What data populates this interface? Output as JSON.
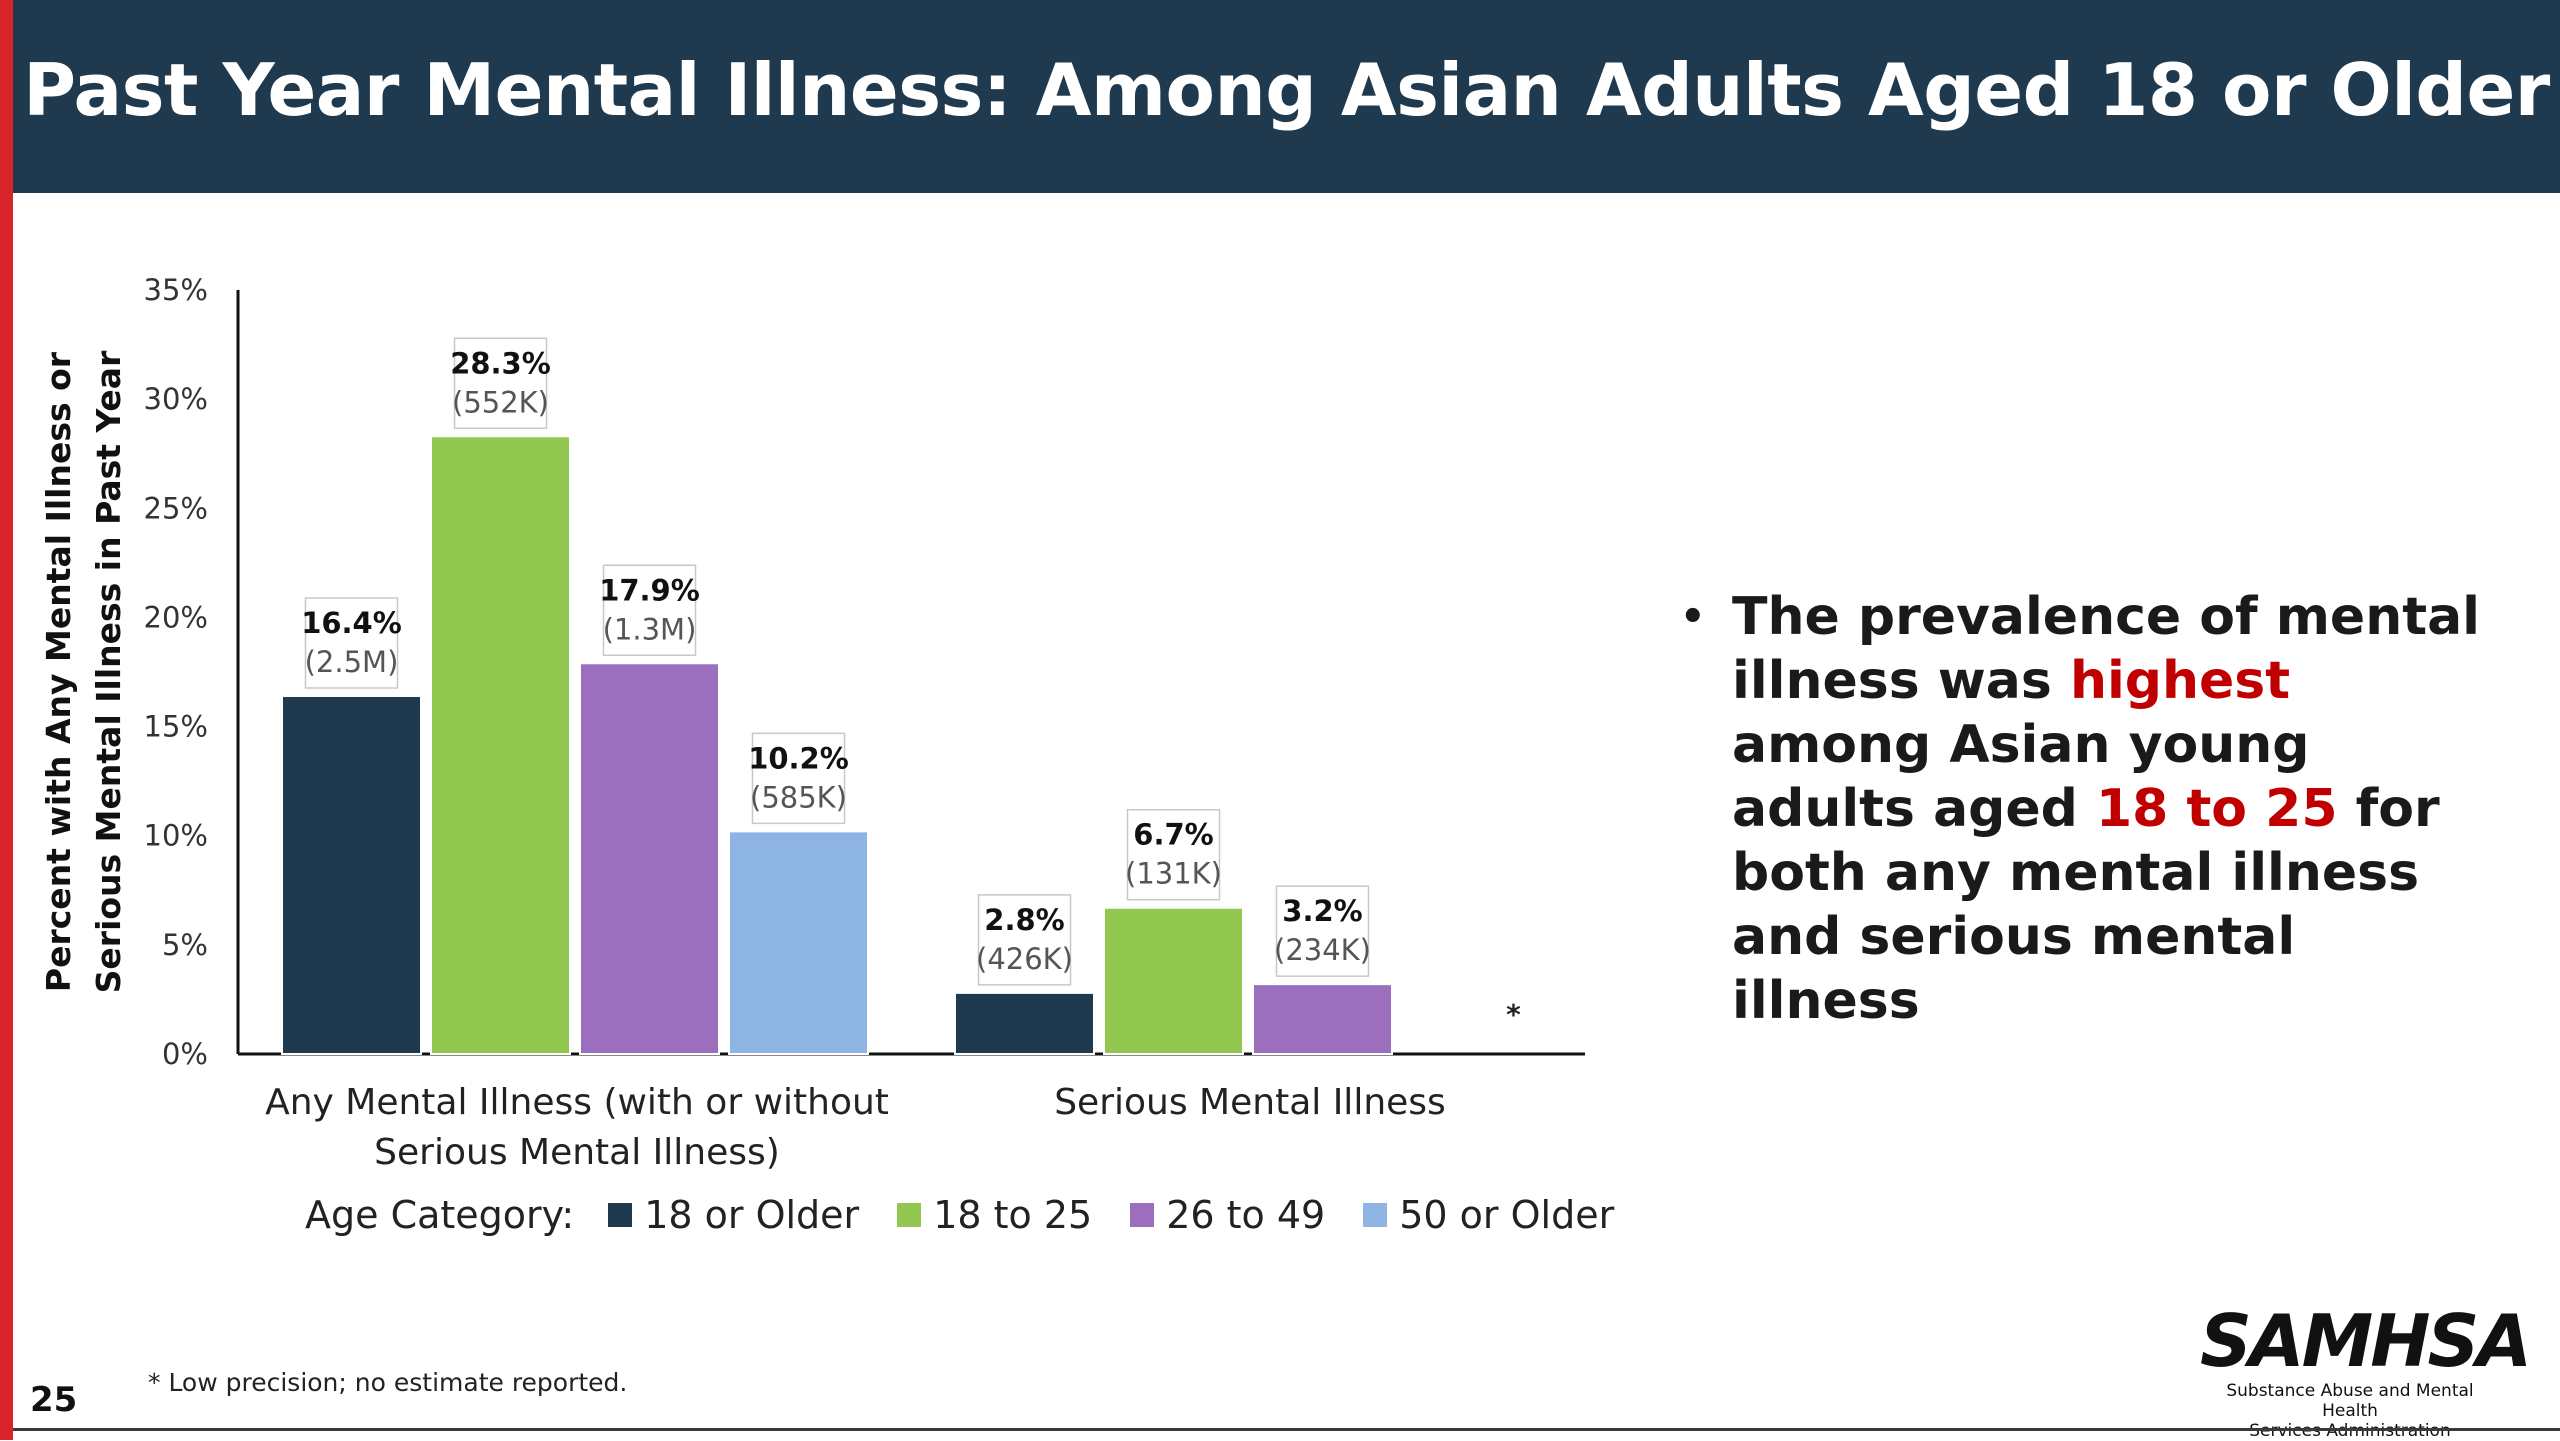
{
  "header": {
    "title": "Past Year Mental Illness: Among Asian Adults Aged 18 or Older"
  },
  "colors": {
    "header_bg": "#1f3a4f",
    "accent_red": "#d8232a",
    "highlight": "#c00000"
  },
  "chart_data": {
    "type": "bar",
    "ylabel": "Percent with Any Mental Illness or Serious Mental Illness in Past Year",
    "ylim": [
      0,
      35
    ],
    "yticks": [
      "0%",
      "5%",
      "10%",
      "15%",
      "20%",
      "25%",
      "30%",
      "35%"
    ],
    "categories": [
      "Any Mental Illness (with or without Serious Mental Illness)",
      "Serious Mental Illness"
    ],
    "category_lines": [
      [
        "Any Mental Illness (with or without",
        "Serious Mental Illness)"
      ],
      [
        "Serious Mental Illness"
      ]
    ],
    "legend_title": "Age Category:",
    "series": [
      {
        "name": "18 or Older",
        "color": "#1f3a4f",
        "values": [
          16.4,
          2.8
        ],
        "labels": [
          "16.4%",
          "2.8%"
        ],
        "counts": [
          "(2.5M)",
          "(426K)"
        ]
      },
      {
        "name": "18 to 25",
        "color": "#92c84f",
        "values": [
          28.3,
          6.7
        ],
        "labels": [
          "28.3%",
          "6.7%"
        ],
        "counts": [
          "(552K)",
          "(131K)"
        ]
      },
      {
        "name": "26 to 49",
        "color": "#9b6fbe",
        "values": [
          17.9,
          3.2
        ],
        "labels": [
          "17.9%",
          "3.2%"
        ],
        "counts": [
          "(1.3M)",
          "(234K)"
        ]
      },
      {
        "name": "50 or Older",
        "color": "#8db4e2",
        "values": [
          10.2,
          null
        ],
        "labels": [
          "10.2%",
          "*"
        ],
        "counts": [
          "(585K)",
          ""
        ]
      }
    ],
    "grid": false,
    "legend": "bottom"
  },
  "bullet": {
    "part1": "The prevalence of mental illness was ",
    "hl1": "highest",
    "part2": " among Asian young adults aged ",
    "hl2": "18 to 25",
    "part3": " for both any mental illness and serious mental illness"
  },
  "footnote": "* Low precision; no estimate reported.",
  "page_number": "25",
  "logo": {
    "word": "SAMHSA",
    "sub1": "Substance Abuse and Mental Health",
    "sub2": "Services Administration"
  }
}
